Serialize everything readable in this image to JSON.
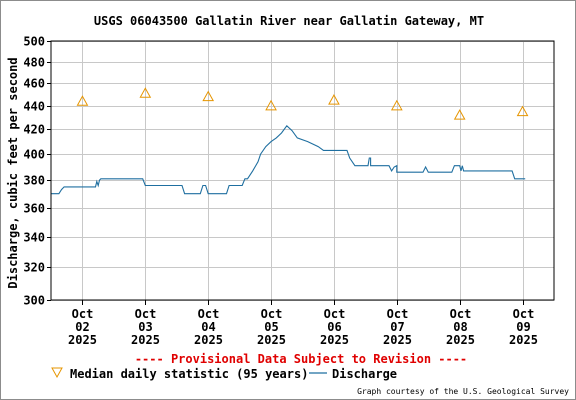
{
  "chart_data": {
    "type": "line",
    "title": "USGS 06043500 Gallatin River near Gallatin Gateway, MT",
    "ylabel": "Discharge, cubic feet per second",
    "ylim": [
      300,
      500
    ],
    "y_scale": "log",
    "yticks": [
      300,
      320,
      340,
      360,
      380,
      400,
      420,
      440,
      460,
      480,
      500
    ],
    "xlim": [
      "2025-10-01T12:00",
      "2025-10-09T12:00"
    ],
    "xticks": [
      {
        "line1": "Oct",
        "line2": "02",
        "line3": "2025"
      },
      {
        "line1": "Oct",
        "line2": "03",
        "line3": "2025"
      },
      {
        "line1": "Oct",
        "line2": "04",
        "line3": "2025"
      },
      {
        "line1": "Oct",
        "line2": "05",
        "line3": "2025"
      },
      {
        "line1": "Oct",
        "line2": "06",
        "line3": "2025"
      },
      {
        "line1": "Oct",
        "line2": "07",
        "line3": "2025"
      },
      {
        "line1": "Oct",
        "line2": "08",
        "line3": "2025"
      },
      {
        "line1": "Oct",
        "line2": "09",
        "line3": "2025"
      }
    ],
    "grid": true,
    "series": [
      {
        "name": "Median daily statistic (95 years)",
        "marker": "triangle",
        "color": "#e69500",
        "points": [
          {
            "x": "2025-10-02T00:00",
            "y": 444
          },
          {
            "x": "2025-10-03T00:00",
            "y": 451
          },
          {
            "x": "2025-10-04T00:00",
            "y": 448
          },
          {
            "x": "2025-10-05T00:00",
            "y": 440
          },
          {
            "x": "2025-10-06T00:00",
            "y": 445
          },
          {
            "x": "2025-10-07T00:00",
            "y": 440
          },
          {
            "x": "2025-10-08T00:00",
            "y": 432
          },
          {
            "x": "2025-10-09T00:00",
            "y": 435
          }
        ]
      },
      {
        "name": "Discharge",
        "color": "#1f6fa0",
        "points": [
          {
            "x": "2025-10-01T12:00",
            "y": 370
          },
          {
            "x": "2025-10-01T15:00",
            "y": 370
          },
          {
            "x": "2025-10-01T16:00",
            "y": 373
          },
          {
            "x": "2025-10-01T17:00",
            "y": 375
          },
          {
            "x": "2025-10-02T05:00",
            "y": 375
          },
          {
            "x": "2025-10-02T05:30",
            "y": 379
          },
          {
            "x": "2025-10-02T06:00",
            "y": 376
          },
          {
            "x": "2025-10-02T06:30",
            "y": 380
          },
          {
            "x": "2025-10-02T07:00",
            "y": 381
          },
          {
            "x": "2025-10-02T23:00",
            "y": 381
          },
          {
            "x": "2025-10-03T00:00",
            "y": 376
          },
          {
            "x": "2025-10-03T14:00",
            "y": 376
          },
          {
            "x": "2025-10-03T15:00",
            "y": 370
          },
          {
            "x": "2025-10-03T21:00",
            "y": 370
          },
          {
            "x": "2025-10-03T22:00",
            "y": 376
          },
          {
            "x": "2025-10-03T23:00",
            "y": 376
          },
          {
            "x": "2025-10-04T00:00",
            "y": 370
          },
          {
            "x": "2025-10-04T02:30",
            "y": 370
          },
          {
            "x": "2025-10-04T07:00",
            "y": 370
          },
          {
            "x": "2025-10-04T08:00",
            "y": 376
          },
          {
            "x": "2025-10-04T13:00",
            "y": 376
          },
          {
            "x": "2025-10-04T14:00",
            "y": 381
          },
          {
            "x": "2025-10-04T15:00",
            "y": 381
          },
          {
            "x": "2025-10-04T17:00",
            "y": 387
          },
          {
            "x": "2025-10-04T19:00",
            "y": 394
          },
          {
            "x": "2025-10-04T20:00",
            "y": 400
          },
          {
            "x": "2025-10-04T22:00",
            "y": 406
          },
          {
            "x": "2025-10-05T00:00",
            "y": 410
          },
          {
            "x": "2025-10-05T02:00",
            "y": 413
          },
          {
            "x": "2025-10-05T04:00",
            "y": 417
          },
          {
            "x": "2025-10-05T06:00",
            "y": 423
          },
          {
            "x": "2025-10-05T08:00",
            "y": 419
          },
          {
            "x": "2025-10-05T10:00",
            "y": 413
          },
          {
            "x": "2025-10-05T14:00",
            "y": 410
          },
          {
            "x": "2025-10-05T18:00",
            "y": 406
          },
          {
            "x": "2025-10-05T20:00",
            "y": 403
          },
          {
            "x": "2025-10-06T05:00",
            "y": 403
          },
          {
            "x": "2025-10-06T06:00",
            "y": 397
          },
          {
            "x": "2025-10-06T14:00",
            "y": 397
          },
          {
            "x": "2025-10-06T15:00",
            "y": 391
          },
          {
            "x": "2025-10-07T00:00",
            "y": 391
          },
          {
            "x": "2025-10-06T08:00",
            "y": 391
          },
          {
            "x": "2025-10-06T13:00",
            "y": 391
          },
          {
            "x": "2025-10-06T13:30",
            "y": 397
          },
          {
            "x": "2025-10-06T14:00",
            "y": 391
          },
          {
            "x": "2025-10-06T21:00",
            "y": 391
          },
          {
            "x": "2025-10-06T22:00",
            "y": 387
          },
          {
            "x": "2025-10-06T23:00",
            "y": 390
          },
          {
            "x": "2025-10-07T00:00",
            "y": 386
          },
          {
            "x": "2025-10-07T10:00",
            "y": 386
          },
          {
            "x": "2025-10-07T11:00",
            "y": 390
          },
          {
            "x": "2025-10-07T12:00",
            "y": 386
          },
          {
            "x": "2025-10-07T21:00",
            "y": 386
          },
          {
            "x": "2025-10-07T22:00",
            "y": 391
          },
          {
            "x": "2025-10-08T00:00",
            "y": 391
          },
          {
            "x": "2025-10-08T00:30",
            "y": 387
          },
          {
            "x": "2025-10-08T01:00",
            "y": 391
          },
          {
            "x": "2025-10-08T01:30",
            "y": 387
          },
          {
            "x": "2025-10-08T03:00",
            "y": 387
          },
          {
            "x": "2025-10-08T20:00",
            "y": 387
          },
          {
            "x": "2025-10-08T21:00",
            "y": 381
          },
          {
            "x": "2025-10-09T01:00",
            "y": 381
          }
        ]
      }
    ]
  },
  "provisional_note": "---- Provisional Data Subject to Revision ----",
  "credit": "Graph courtesy of the U.S. Geological Survey"
}
